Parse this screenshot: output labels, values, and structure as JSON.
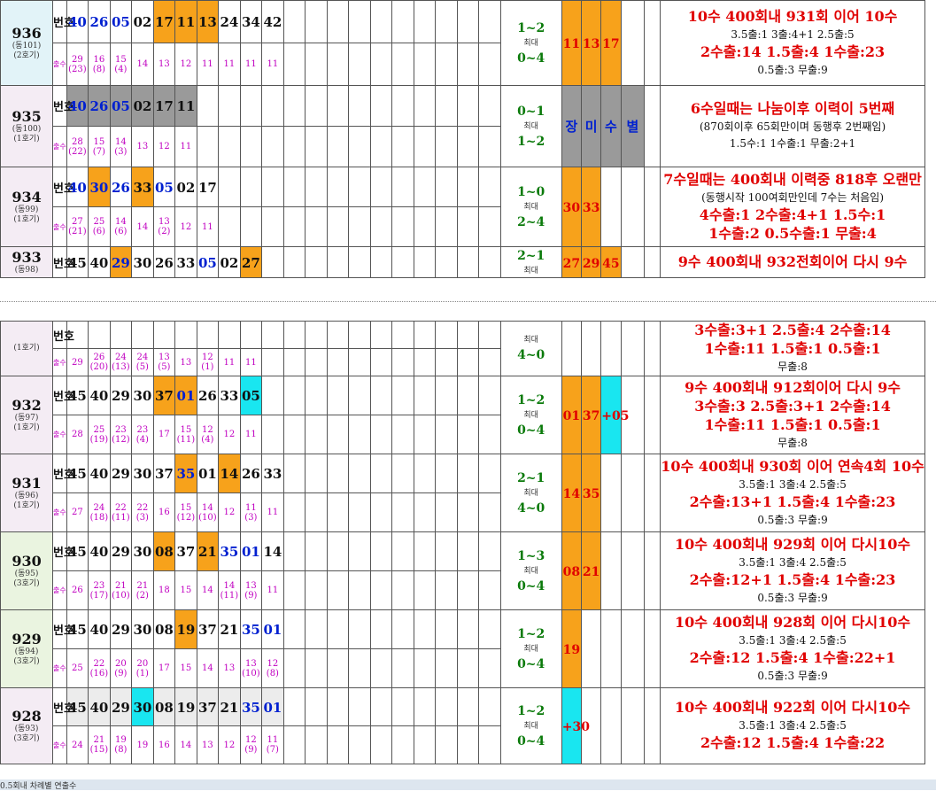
{
  "top_rows": [
    {
      "id": "936",
      "sub1": "(동101)",
      "sub2": "(2호기)",
      "nums": [
        {
          "v": "40",
          "c": "b"
        },
        {
          "v": "26",
          "c": "b"
        },
        {
          "v": "05",
          "c": "b"
        },
        {
          "v": "02"
        },
        {
          "v": "17",
          "bg": "org"
        },
        {
          "v": "11",
          "bg": "org"
        },
        {
          "v": "13",
          "bg": "org"
        },
        {
          "v": "24"
        },
        {
          "v": "34"
        },
        {
          "v": "42"
        }
      ],
      "counts": [
        "29\n(23)",
        "16\n(8)",
        "15\n(4)",
        "14",
        "13",
        "12",
        "11",
        "11",
        "11",
        "11"
      ],
      "mr1": "1~2",
      "mr2": "0~4",
      "res": [
        {
          "v": "11",
          "bg": "org"
        },
        {
          "v": "13",
          "bg": "org"
        },
        {
          "v": "17",
          "bg": "org"
        }
      ]
    },
    {
      "id": "935",
      "sub1": "(동100)",
      "sub2": "(1호기)",
      "nums": [
        {
          "v": "40",
          "c": "b",
          "bg": "gry"
        },
        {
          "v": "26",
          "c": "b",
          "bg": "gry"
        },
        {
          "v": "05",
          "c": "b",
          "bg": "gry"
        },
        {
          "v": "02",
          "bg": "gry"
        },
        {
          "v": "17",
          "bg": "gry"
        },
        {
          "v": "11",
          "bg": "gry"
        }
      ],
      "counts": [
        "28\n(22)",
        "15\n(7)",
        "14\n(3)",
        "13",
        "12",
        "11"
      ],
      "mr1": "0~1",
      "mr2": "1~2",
      "res": [
        {
          "v": "장",
          "bg": "gry"
        },
        {
          "v": "미",
          "bg": "gry"
        },
        {
          "v": "수",
          "bg": "gry"
        },
        {
          "v": "별",
          "bg": "gry"
        }
      ]
    },
    {
      "id": "934",
      "sub1": "(동99)",
      "sub2": "(1호기)",
      "nums": [
        {
          "v": "40",
          "c": "b"
        },
        {
          "v": "30",
          "c": "b",
          "bg": "org"
        },
        {
          "v": "26",
          "c": "b"
        },
        {
          "v": "33",
          "bg": "org"
        },
        {
          "v": "05",
          "c": "b"
        },
        {
          "v": "02"
        },
        {
          "v": "17"
        }
      ],
      "counts": [
        "27\n(21)",
        "25\n(6)",
        "14\n(6)",
        "14",
        "13\n(2)",
        "12",
        "11"
      ],
      "mr1": "1~0",
      "mr2": "2~4",
      "res": [
        {
          "v": "30",
          "bg": "org"
        },
        {
          "v": "33",
          "bg": "org"
        }
      ]
    },
    {
      "id": "933",
      "sub1": "(동98)",
      "nums": [
        {
          "v": "45"
        },
        {
          "v": "40"
        },
        {
          "v": "29",
          "c": "b",
          "bg": "org"
        },
        {
          "v": "30"
        },
        {
          "v": "26"
        },
        {
          "v": "33"
        },
        {
          "v": "05",
          "c": "b"
        },
        {
          "v": "02"
        },
        {
          "v": "27",
          "bg": "org"
        }
      ],
      "mr1": "2~1",
      "res": [
        {
          "v": "27",
          "bg": "org"
        },
        {
          "v": "29",
          "bg": "org"
        },
        {
          "v": "45",
          "bg": "org"
        }
      ]
    }
  ],
  "top_notes": {
    "936": [
      "10수 400회내 931회 이어 10수",
      "3.5출:1  3출:4+1  2.5출:5",
      "2수출:14  1.5출:4  1수출:23",
      "0.5출:3  무출:9"
    ],
    "935": [
      "6수일때는 나눔이후 이력이 5번째",
      "(870회이후 65회만이며 동행후 2번째임)",
      "1.5수:1  1수출:1  무출:2+1"
    ],
    "934": [
      "7수일때는 400회내 이력중 818후 오랜만",
      "(동행시작 100여회만인데 7수는 처음임)",
      "4수출:1  2수출:4+1  1.5수:1",
      "1수출:2  0.5수출:1  무출:4"
    ],
    "933": [
      "9수 400회내 932전회이어 다시 9수"
    ]
  },
  "bottom_rows": [
    {
      "id": "",
      "sub1": "(1호기)",
      "nums": [],
      "counts": [
        "29",
        "26\n(20)",
        "24\n(13)",
        "24\n(5)",
        "13\n(5)",
        "13",
        "12\n(1)",
        "11",
        "11"
      ],
      "mr2": "4~0"
    },
    {
      "id": "932",
      "sub1": "(동97)",
      "sub2": "(1호기)",
      "nums": [
        {
          "v": "45"
        },
        {
          "v": "40"
        },
        {
          "v": "29"
        },
        {
          "v": "30"
        },
        {
          "v": "37",
          "bg": "org"
        },
        {
          "v": "01",
          "c": "b",
          "bg": "org"
        },
        {
          "v": "26"
        },
        {
          "v": "33"
        },
        {
          "v": "05",
          "bg": "cyn"
        }
      ],
      "counts": [
        "28",
        "25\n(19)",
        "23\n(12)",
        "23\n(4)",
        "17",
        "15\n(11)",
        "12\n(4)",
        "12",
        "11"
      ],
      "mr1": "1~2",
      "mr2": "0~4",
      "res": [
        {
          "v": "01",
          "bg": "org"
        },
        {
          "v": "37",
          "bg": "org"
        },
        {
          "v": "+05",
          "bg": "cyn"
        }
      ]
    },
    {
      "id": "931",
      "sub1": "(동96)",
      "sub2": "(1호기)",
      "nums": [
        {
          "v": "45"
        },
        {
          "v": "40"
        },
        {
          "v": "29"
        },
        {
          "v": "30"
        },
        {
          "v": "37"
        },
        {
          "v": "35",
          "c": "b",
          "bg": "org"
        },
        {
          "v": "01"
        },
        {
          "v": "14",
          "bg": "org"
        },
        {
          "v": "26"
        },
        {
          "v": "33"
        }
      ],
      "counts": [
        "27",
        "24\n(18)",
        "22\n(11)",
        "22\n(3)",
        "16",
        "15\n(12)",
        "14\n(10)",
        "12",
        "11\n(3)",
        "11"
      ],
      "mr1": "2~1",
      "mr2": "4~0",
      "res": [
        {
          "v": "14",
          "bg": "org"
        },
        {
          "v": "35",
          "bg": "org"
        }
      ]
    },
    {
      "id": "930",
      "sub1": "(동95)",
      "sub2": "(3호기)",
      "nums": [
        {
          "v": "45"
        },
        {
          "v": "40"
        },
        {
          "v": "29"
        },
        {
          "v": "30"
        },
        {
          "v": "08",
          "bg": "org"
        },
        {
          "v": "37"
        },
        {
          "v": "21",
          "bg": "org"
        },
        {
          "v": "35",
          "c": "b"
        },
        {
          "v": "01",
          "c": "b"
        },
        {
          "v": "14"
        }
      ],
      "counts": [
        "26",
        "23\n(17)",
        "21\n(10)",
        "21\n(2)",
        "18",
        "15",
        "14",
        "14\n(11)",
        "13\n(9)",
        "11"
      ],
      "mr1": "1~3",
      "mr2": "0~4",
      "res": [
        {
          "v": "08",
          "bg": "org"
        },
        {
          "v": "21",
          "bg": "org"
        }
      ]
    },
    {
      "id": "929",
      "sub1": "(동94)",
      "sub2": "(3호기)",
      "nums": [
        {
          "v": "45"
        },
        {
          "v": "40"
        },
        {
          "v": "29"
        },
        {
          "v": "30"
        },
        {
          "v": "08"
        },
        {
          "v": "19",
          "bg": "org"
        },
        {
          "v": "37"
        },
        {
          "v": "21"
        },
        {
          "v": "35",
          "c": "b"
        },
        {
          "v": "01",
          "c": "b"
        }
      ],
      "counts": [
        "25",
        "22\n(16)",
        "20\n(9)",
        "20\n(1)",
        "17",
        "15",
        "14",
        "13",
        "13\n(10)",
        "12\n(8)"
      ],
      "mr1": "1~2",
      "mr2": "0~4",
      "res": [
        {
          "v": "19",
          "bg": "org"
        }
      ]
    },
    {
      "id": "928",
      "sub1": "(동93)",
      "sub2": "(3호기)",
      "nums": [
        {
          "v": "45",
          "bg": "lgry"
        },
        {
          "v": "40",
          "bg": "lgry"
        },
        {
          "v": "29",
          "bg": "lgry"
        },
        {
          "v": "30",
          "bg": "cyn"
        },
        {
          "v": "08",
          "bg": "lgry"
        },
        {
          "v": "19",
          "bg": "lgry"
        },
        {
          "v": "37",
          "bg": "lgry"
        },
        {
          "v": "21",
          "bg": "lgry"
        },
        {
          "v": "35",
          "c": "b",
          "bg": "lgry"
        },
        {
          "v": "01",
          "c": "b",
          "bg": "lgry"
        }
      ],
      "counts": [
        "24",
        "21\n(15)",
        "19\n(8)",
        "19",
        "16",
        "14",
        "13",
        "12",
        "12\n(9)",
        "11\n(7)"
      ],
      "mr1": "1~2",
      "mr2": "0~4",
      "res": [
        {
          "v": "+30",
          "bg": "cyn"
        }
      ]
    }
  ],
  "bottom_notes": {
    "": [
      "3수출:3+1  2.5출:4  2수출:14",
      "1수출:11  1.5출:1  0.5출:1",
      "무출:8"
    ],
    "932": [
      "9수 400회내 912회이어 다시 9수",
      "3수출:3  2.5출:3+1  2수출:14",
      "1수출:11  1.5출:1  0.5출:1",
      "무출:8"
    ],
    "931": [
      "10수 400회내 930회 이어 연속4회 10수",
      "3.5출:1  3출:4  2.5출:5",
      "2수출:13+1  1.5출:4  1수출:23",
      "0.5출:3  무출:9"
    ],
    "930": [
      "10수 400회내 929회 이어 다시10수",
      "3.5출:1  3출:4  2.5출:5",
      "2수출:12+1  1.5출:4  1수출:23",
      "0.5출:3  무출:9"
    ],
    "929": [
      "10수 400회내 928회 이어 다시10수",
      "3.5출:1  3출:4  2.5출:5",
      "2수출:12  1.5출:4  1수출:22+1",
      "0.5출:3  무출:9"
    ],
    "928": [
      "10수 400회내 922회 이어 다시10수",
      "3.5출:1  3출:4  2.5출:5",
      "2수출:12  1.5출:4  1수출:22"
    ]
  },
  "labels": {
    "num": "번호",
    "cnt": "출수",
    "max": "최대"
  },
  "footer": "0.5회내 차례별 연출수"
}
